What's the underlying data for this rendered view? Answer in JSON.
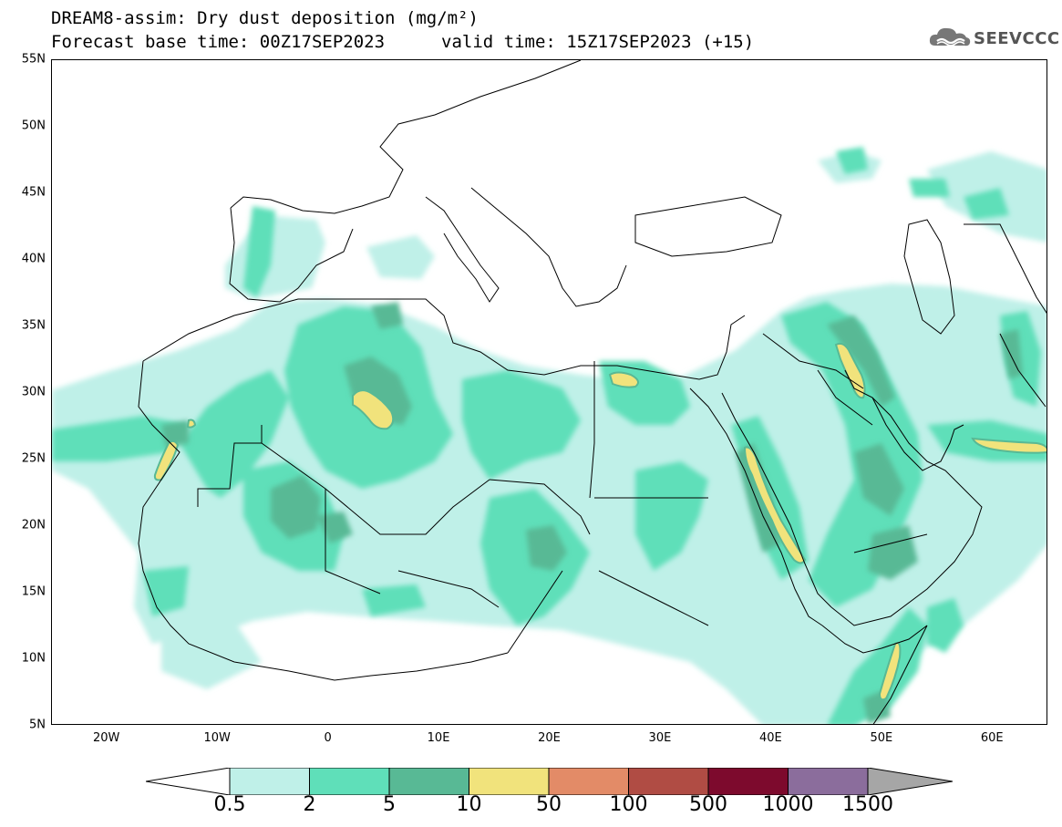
{
  "title": {
    "line1": "DREAM8-assim: Dry dust deposition (mg/m²)",
    "line2_left": "Forecast base time: 00Z17SEP2023",
    "line2_right": "valid time: 15Z17SEP2023 (+15)"
  },
  "logo": {
    "text": "SEEVCCC",
    "icon": "cloud-logo-icon"
  },
  "map": {
    "lat_labels": [
      "55N",
      "50N",
      "45N",
      "40N",
      "35N",
      "30N",
      "25N",
      "20N",
      "15N",
      "10N",
      "5N"
    ],
    "lon_labels": [
      "20W",
      "10W",
      "0",
      "10E",
      "20E",
      "30E",
      "40E",
      "50E",
      "60E"
    ],
    "lat_range": [
      5,
      55
    ],
    "lon_range": [
      -25,
      65
    ]
  },
  "colorbar": {
    "labels": [
      "0.5",
      "2",
      "5",
      "10",
      "50",
      "100",
      "500",
      "1000",
      "1500"
    ],
    "colors": [
      "#bff0e8",
      "#5fdfb9",
      "#58b995",
      "#f1e37c",
      "#e38b67",
      "#b04c44",
      "#7d0a2d",
      "#8b6d9c",
      "#a6a6a6"
    ],
    "unit": "mg/m²"
  },
  "colors": {
    "light_cyan": "#bff0e8",
    "green": "#5fdfb9",
    "dark_green": "#58b995",
    "yellow": "#f1e37c"
  }
}
